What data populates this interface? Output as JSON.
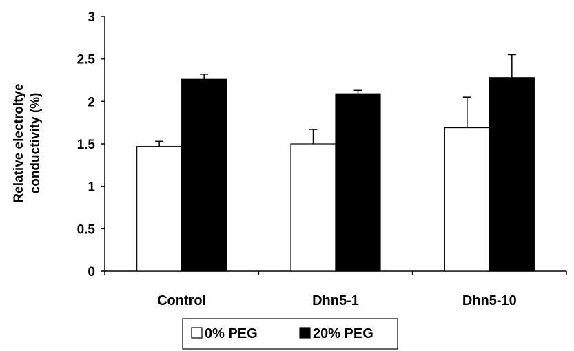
{
  "chart_data": {
    "type": "bar",
    "categories": [
      "Control",
      "Dhn5-1",
      "Dhn5-10"
    ],
    "series": [
      {
        "name": "0% PEG",
        "values": [
          1.47,
          1.5,
          1.69
        ],
        "errors": [
          0.06,
          0.17,
          0.36
        ],
        "color": "#ffffff"
      },
      {
        "name": "20% PEG",
        "values": [
          2.26,
          2.09,
          2.28
        ],
        "errors": [
          0.06,
          0.04,
          0.27
        ],
        "color": "#000000"
      }
    ],
    "ylabel_lines": [
      "Relative electroltye",
      "conductivity (%)"
    ],
    "ylim": [
      0,
      3
    ],
    "yticks": [
      "0",
      "0.5",
      "1",
      "1.5",
      "2",
      "2.5",
      "3"
    ],
    "grid": false,
    "legend_position": "bottom-center"
  }
}
